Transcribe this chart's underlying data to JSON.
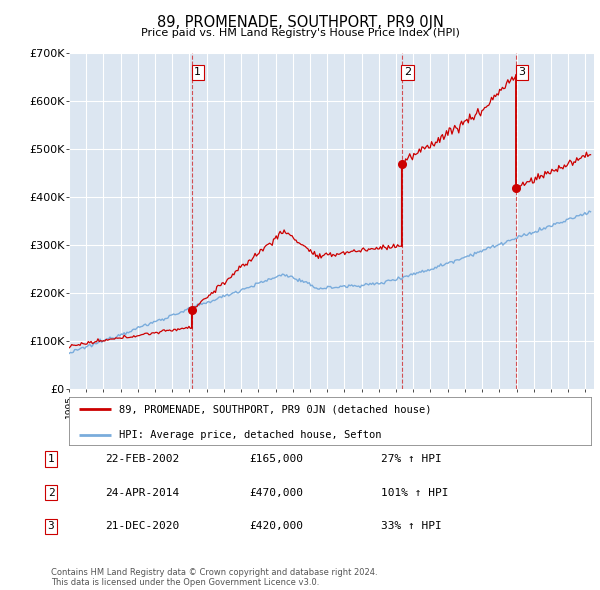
{
  "title": "89, PROMENADE, SOUTHPORT, PR9 0JN",
  "subtitle": "Price paid vs. HM Land Registry's House Price Index (HPI)",
  "bg_color": "#dce6f1",
  "red_line_color": "#cc0000",
  "blue_line_color": "#7aacdc",
  "ylim": [
    0,
    700000
  ],
  "yticks": [
    0,
    100000,
    200000,
    300000,
    400000,
    500000,
    600000,
    700000
  ],
  "ytick_labels": [
    "£0",
    "£100K",
    "£200K",
    "£300K",
    "£400K",
    "£500K",
    "£600K",
    "£700K"
  ],
  "sale_dates": [
    2002.13,
    2014.32,
    2020.97
  ],
  "sale_prices": [
    165000,
    470000,
    420000
  ],
  "sale_labels": [
    "1",
    "2",
    "3"
  ],
  "legend_red": "89, PROMENADE, SOUTHPORT, PR9 0JN (detached house)",
  "legend_blue": "HPI: Average price, detached house, Sefton",
  "table_rows": [
    [
      "1",
      "22-FEB-2002",
      "£165,000",
      "27% ↑ HPI"
    ],
    [
      "2",
      "24-APR-2014",
      "£470,000",
      "101% ↑ HPI"
    ],
    [
      "3",
      "21-DEC-2020",
      "£420,000",
      "33% ↑ HPI"
    ]
  ],
  "footnote": "Contains HM Land Registry data © Crown copyright and database right 2024.\nThis data is licensed under the Open Government Licence v3.0.",
  "xmin": 1995.0,
  "xmax": 2025.5
}
